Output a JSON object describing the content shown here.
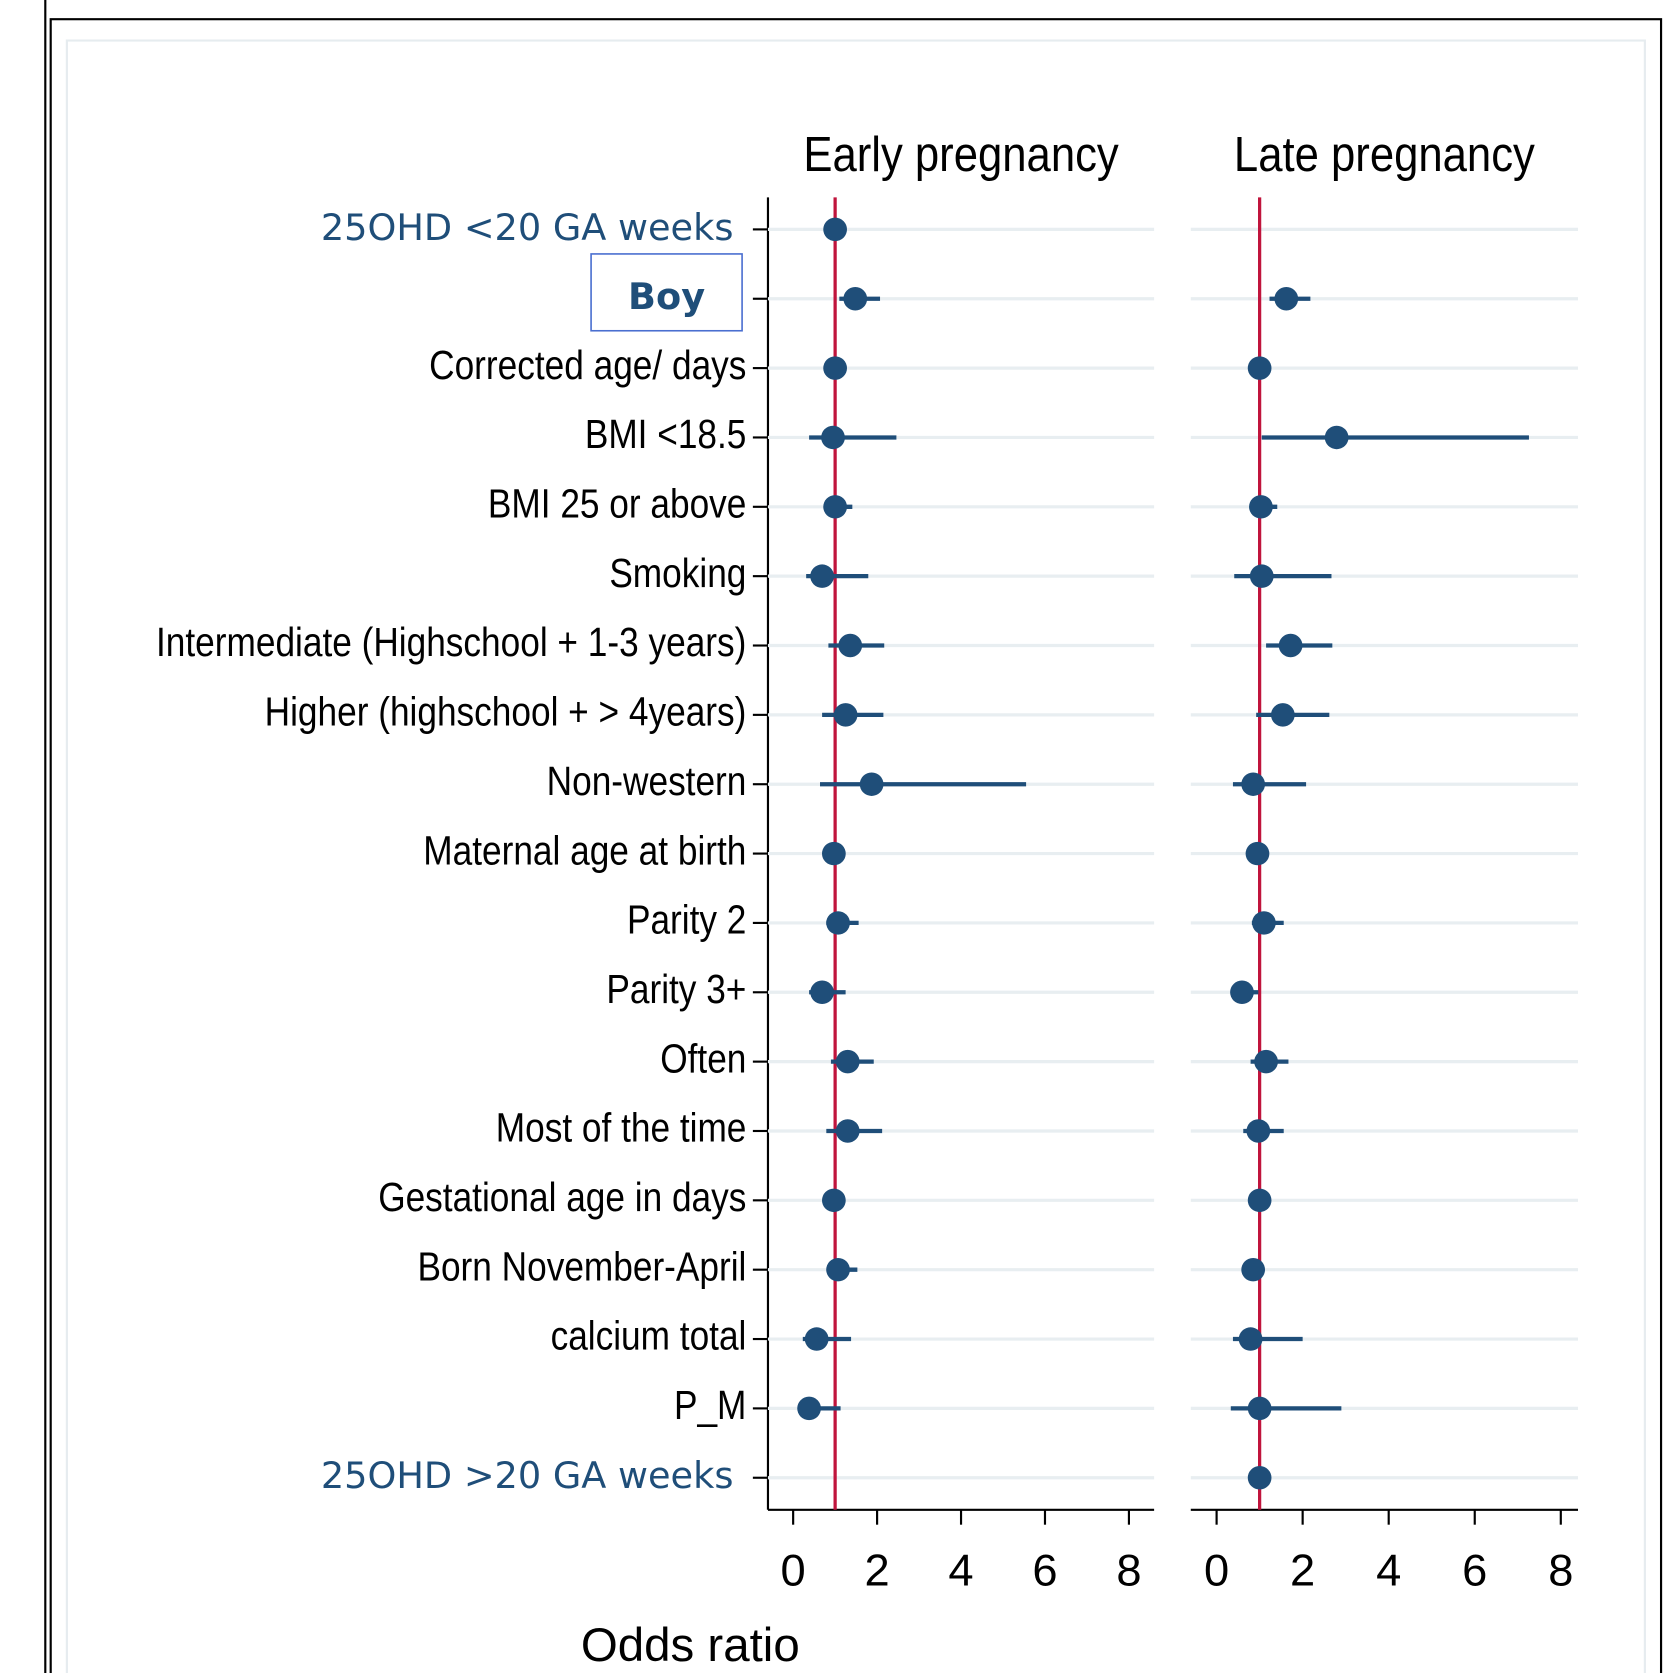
{
  "chart_data": {
    "type": "forest",
    "xlabel": "Odds ratio",
    "categories": [
      "25OHD <20 GA weeks",
      "Boy",
      "Corrected age/ days",
      "BMI <18.5",
      "BMI 25 or above",
      "Smoking",
      "Intermediate (Highschool + 1-3 years)",
      "Higher (highschool + > 4years)",
      "Non-western",
      "Maternal age at birth",
      "Parity 2",
      "Parity 3+",
      "Often",
      "Most of the time",
      "Gestational age in days",
      "Born November-April",
      "calcium total",
      "P_M",
      "25OHD >20 GA weeks"
    ],
    "label_colors": [
      "#1f4e79",
      "#1f4e79",
      "#000000",
      "#000000",
      "#000000",
      "#000000",
      "#000000",
      "#000000",
      "#000000",
      "#000000",
      "#000000",
      "#000000",
      "#000000",
      "#000000",
      "#000000",
      "#000000",
      "#000000",
      "#000000",
      "#1f4e79"
    ],
    "color": "#1f4e79",
    "ref_color": "#c0143c",
    "ref_line": 1,
    "panels": [
      {
        "title": "Early pregnancy",
        "xlim": [
          -0.6,
          8.6
        ],
        "xticks": [
          0,
          2,
          4,
          6,
          8
        ],
        "values": [
          1.0,
          1.48,
          1.0,
          0.95,
          1.0,
          0.69,
          1.36,
          1.25,
          1.87,
          0.97,
          1.07,
          0.69,
          1.3,
          1.3,
          0.97,
          1.07,
          0.56,
          0.38,
          null
        ],
        "lower": [
          null,
          1.1,
          null,
          0.38,
          0.8,
          0.31,
          0.84,
          0.69,
          0.64,
          null,
          0.79,
          0.38,
          0.9,
          0.79,
          null,
          0.84,
          0.23,
          0.18,
          null
        ],
        "upper": [
          null,
          2.07,
          null,
          2.46,
          1.41,
          1.79,
          2.17,
          2.15,
          5.55,
          null,
          1.56,
          1.25,
          1.92,
          2.12,
          null,
          1.53,
          1.38,
          1.13,
          null
        ]
      },
      {
        "title": "Late pregnancy",
        "xlim": [
          -0.6,
          8.4
        ],
        "xticks": [
          0,
          2,
          4,
          6,
          8
        ],
        "values": [
          null,
          1.62,
          1.0,
          2.79,
          1.03,
          1.05,
          1.72,
          1.54,
          0.85,
          0.95,
          1.1,
          0.59,
          1.15,
          0.97,
          1.0,
          0.85,
          0.79,
          1.0,
          1.0
        ],
        "lower": [
          null,
          1.23,
          null,
          1.05,
          0.85,
          0.41,
          1.15,
          0.92,
          0.38,
          null,
          0.82,
          0.36,
          0.79,
          0.62,
          null,
          0.64,
          0.38,
          0.33,
          null
        ],
        "upper": [
          null,
          2.18,
          null,
          7.26,
          1.41,
          2.67,
          2.69,
          2.62,
          2.08,
          null,
          1.56,
          0.97,
          1.67,
          1.56,
          null,
          1.1,
          2.0,
          2.9,
          null
        ]
      }
    ]
  }
}
